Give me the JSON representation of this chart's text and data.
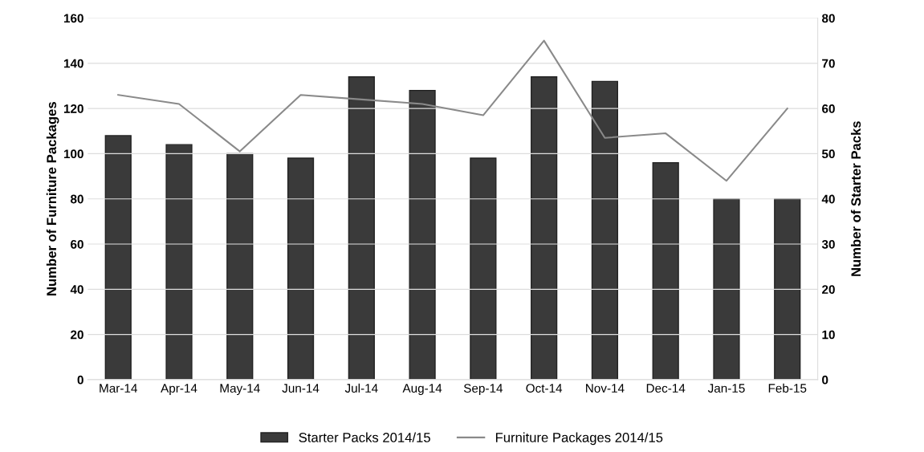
{
  "chart_data": {
    "type": "bar",
    "categories": [
      "Mar-14",
      "Apr-14",
      "May-14",
      "Jun-14",
      "Jul-14",
      "Aug-14",
      "Sep-14",
      "Oct-14",
      "Nov-14",
      "Dec-14",
      "Jan-15",
      "Feb-15"
    ],
    "series": [
      {
        "name": "Starter Packs 2014/15",
        "axis": "y2",
        "color": "#3a3a3a",
        "values": [
          54,
          52,
          50,
          49,
          67,
          64,
          49,
          67,
          66,
          48,
          40,
          40
        ]
      },
      {
        "name": "Furniture Packages 2014/15",
        "type": "line",
        "color": "#8a8a8a",
        "values": [
          126,
          122,
          101,
          126,
          124,
          122,
          117,
          150,
          107,
          109,
          88,
          120
        ]
      }
    ],
    "ylabel": "Number of Furniture Packages",
    "y2label": "Number of Starter Packs",
    "ylim": [
      0,
      160
    ],
    "yticks": [
      0,
      20,
      40,
      60,
      80,
      100,
      120,
      140,
      160
    ],
    "y2lim": [
      0,
      80
    ],
    "y2ticks": [
      0,
      10,
      20,
      30,
      40,
      50,
      60,
      70,
      80
    ],
    "grid": "y",
    "legend": "bottom"
  }
}
